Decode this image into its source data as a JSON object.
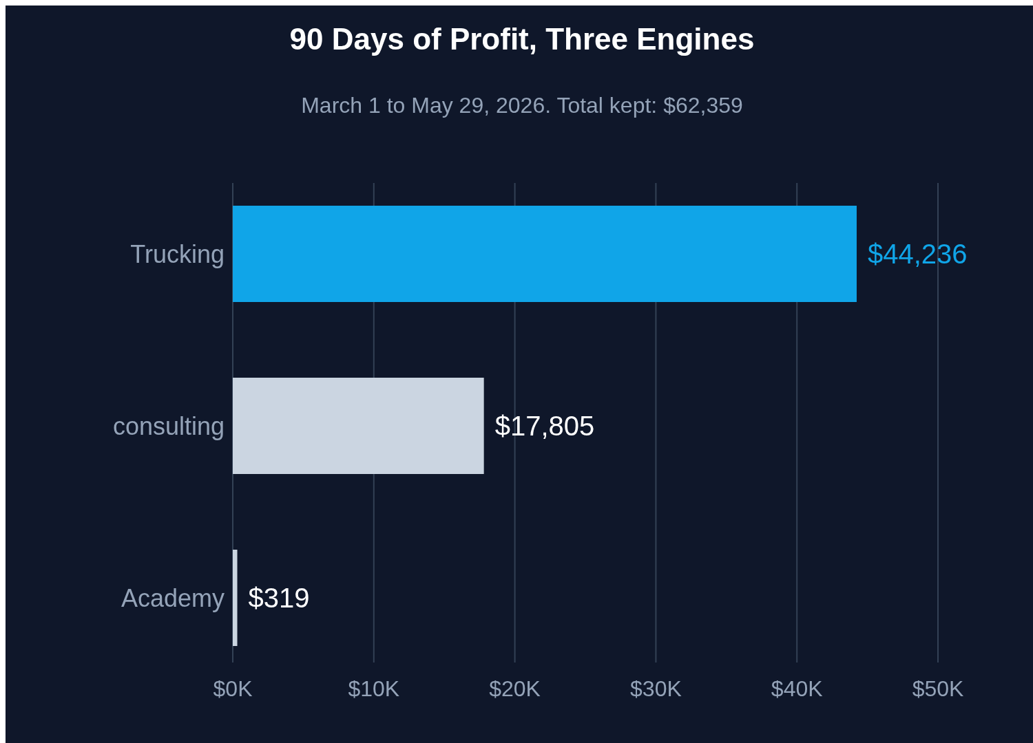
{
  "chart_data": {
    "type": "bar",
    "orientation": "horizontal",
    "title": "90 Days of Profit, Three Engines",
    "subtitle": "March 1 to May 29, 2026. Total kept: $62,359",
    "categories": [
      "Trucking",
      "consulting",
      "Academy"
    ],
    "values": [
      44236,
      17805,
      319
    ],
    "value_labels": [
      "$44,236",
      "$17,805",
      "$319"
    ],
    "colors": [
      "#10a5e8",
      "#cbd5e1",
      "#cbd5e1"
    ],
    "xlim": [
      0,
      50000
    ],
    "xticks": [
      {
        "value": 0,
        "label": "$0K"
      },
      {
        "value": 10000,
        "label": "$10K"
      },
      {
        "value": 20000,
        "label": "$20K"
      },
      {
        "value": 30000,
        "label": "$30K"
      },
      {
        "value": 40000,
        "label": "$40K"
      },
      {
        "value": 50000,
        "label": "$50K"
      }
    ],
    "grid": "x"
  }
}
